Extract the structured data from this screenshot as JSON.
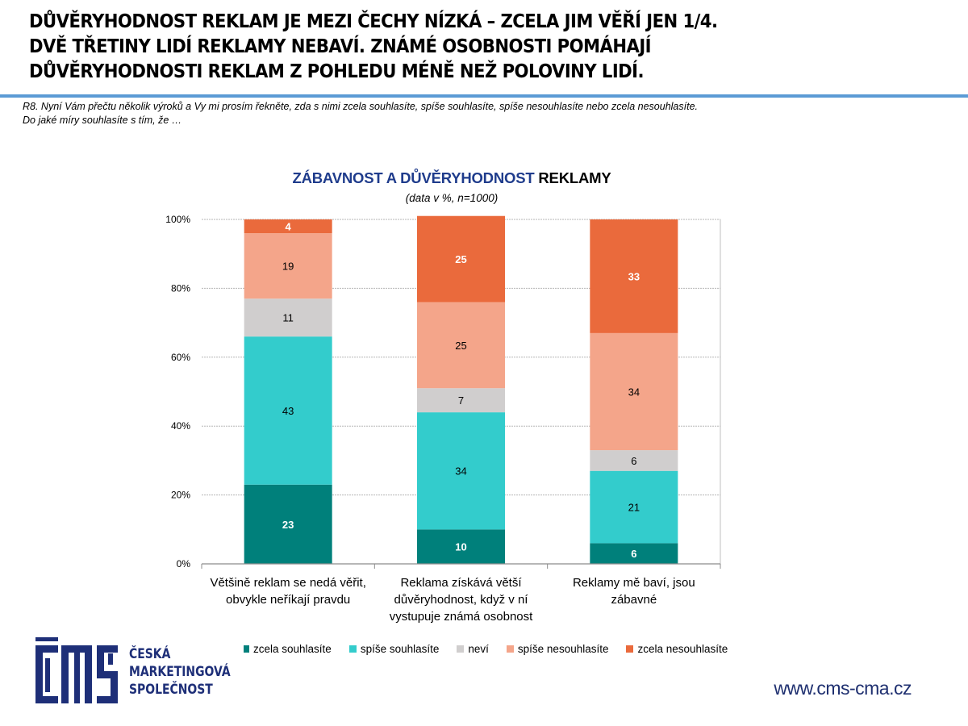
{
  "headline": {
    "lines": [
      "DŮVĚRYHODNOST REKLAM JE MEZI ČECHY NÍZKÁ – ZCELA JIM VĚŘÍ JEN 1/4.",
      "DVĚ TŘETINY LIDÍ REKLAMY NEBAVÍ. ZNÁMÉ OSOBNOSTI POMÁHAJÍ",
      "DŮVĚRYHODNOSTI REKLAM Z POHLEDU MÉNĚ NEŽ POLOVINY LIDÍ."
    ]
  },
  "question": {
    "lines": [
      "R8. Nyní Vám přečtu několik výroků a Vy mi prosím řekněte, zda s nimi zcela souhlasíte, spíše souhlasíte, spíše nesouhlasíte nebo zcela nesouhlasíte.",
      "Do jaké míry souhlasíte s tím, že …"
    ]
  },
  "colors": {
    "accent_rule": "#5b9bd5",
    "title_blue": "#1f3c8c",
    "logo_blue": "#1e2f78"
  },
  "chart_data": {
    "type": "bar",
    "stacked": true,
    "percent_stacked": true,
    "title_blue_part": "ZÁBAVNOST A DŮVĚRYHODNOST",
    "title_black_part": "REKLAMY",
    "subtitle": "(data v %, n=1000)",
    "xlabel": "",
    "ylabel": "",
    "ylim": [
      0,
      100
    ],
    "y_ticks": [
      "0%",
      "20%",
      "40%",
      "60%",
      "80%",
      "100%"
    ],
    "y_tick_values": [
      0,
      20,
      40,
      60,
      80,
      100
    ],
    "grid": true,
    "legend_position": "bottom",
    "categories": [
      "Většině reklam se nedá věřit, obvykle neříkají pravdu",
      "Reklama získává větší důvěryhodnost, když v ní vystupuje známá osobnost",
      "Reklamy mě baví, jsou zábavné"
    ],
    "series": [
      {
        "name": "zcela souhlasíte",
        "color": "#00807b",
        "label_color": "#ffffff",
        "values": [
          23,
          10,
          6
        ]
      },
      {
        "name": "spíše souhlasíte",
        "color": "#33cccc",
        "label_color": "#000000",
        "values": [
          43,
          34,
          21
        ]
      },
      {
        "name": "neví",
        "color": "#d0cece",
        "label_color": "#000000",
        "values": [
          11,
          7,
          6
        ]
      },
      {
        "name": "spíše nesouhlasíte",
        "color": "#f4a58a",
        "label_color": "#000000",
        "values": [
          19,
          25,
          34
        ]
      },
      {
        "name": "zcela nesouhlasíte",
        "color": "#ea6a3c",
        "label_color": "#ffffff",
        "values": [
          4,
          25,
          33
        ]
      }
    ]
  },
  "logo": {
    "lines": [
      "ČESKÁ",
      "MARKETINGOVÁ",
      "SPOLEČNOST"
    ]
  },
  "footer": {
    "website": "www.cms-cma.cz"
  }
}
